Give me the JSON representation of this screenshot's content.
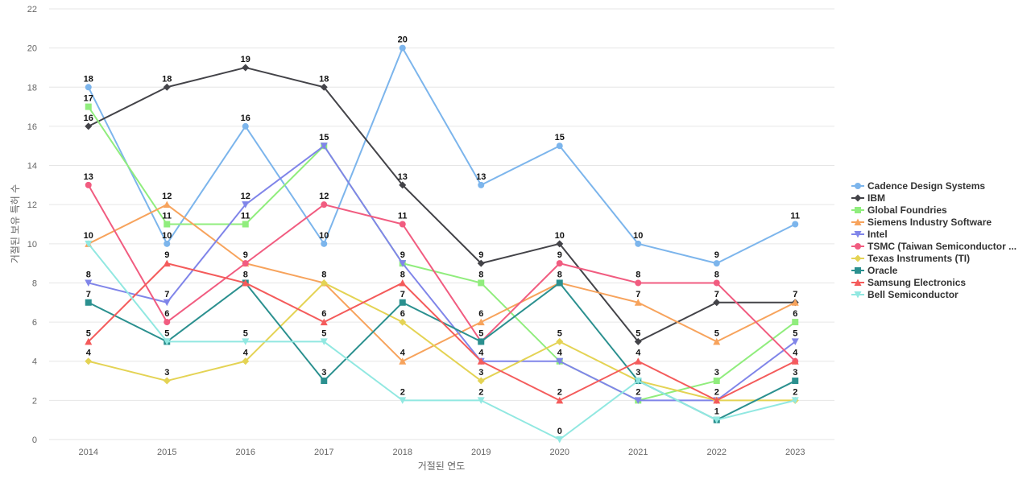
{
  "chart_data": {
    "type": "line",
    "xlabel": "거절된 연도",
    "ylabel": "거절된 보유 특허 수",
    "ylim": [
      0,
      22
    ],
    "yticks": [
      0,
      2,
      4,
      6,
      8,
      10,
      12,
      14,
      16,
      18,
      20,
      22
    ],
    "grid": true,
    "legend_position": "right",
    "categories": [
      "2014",
      "2015",
      "2016",
      "2017",
      "2018",
      "2019",
      "2020",
      "2021",
      "2022",
      "2023"
    ],
    "series": [
      {
        "name": "Cadence Design Systems",
        "color": "#7cb5ec",
        "marker": "circle",
        "values": [
          18,
          10,
          16,
          10,
          20,
          13,
          15,
          10,
          9,
          11
        ]
      },
      {
        "name": "IBM",
        "color": "#434348",
        "marker": "diamond",
        "values": [
          16,
          18,
          19,
          18,
          13,
          9,
          10,
          5,
          7,
          7
        ]
      },
      {
        "name": "Global Foundries",
        "color": "#90ed7d",
        "marker": "square",
        "values": [
          17,
          11,
          11,
          15,
          9,
          8,
          4,
          2,
          3,
          6
        ]
      },
      {
        "name": "Siemens Industry Software",
        "color": "#f7a35c",
        "marker": "triangle",
        "values": [
          10,
          12,
          9,
          8,
          4,
          6,
          8,
          7,
          5,
          7
        ]
      },
      {
        "name": "Intel",
        "color": "#8085e9",
        "marker": "triangle-down",
        "values": [
          8,
          7,
          12,
          15,
          9,
          4,
          4,
          2,
          2,
          5
        ]
      },
      {
        "name": "TSMC (Taiwan Semiconductor ...",
        "color": "#f15c80",
        "marker": "circle",
        "values": [
          13,
          6,
          9,
          12,
          11,
          5,
          9,
          8,
          8,
          4
        ]
      },
      {
        "name": "Texas Instruments (TI)",
        "color": "#e4d354",
        "marker": "diamond",
        "values": [
          4,
          3,
          4,
          8,
          6,
          3,
          5,
          3,
          2,
          2
        ]
      },
      {
        "name": "Oracle",
        "color": "#2b908f",
        "marker": "square",
        "values": [
          7,
          5,
          8,
          3,
          7,
          5,
          8,
          3,
          1,
          3
        ]
      },
      {
        "name": "Samsung Electronics",
        "color": "#f45b5b",
        "marker": "triangle",
        "values": [
          5,
          9,
          8,
          6,
          8,
          4,
          2,
          4,
          2,
          4
        ]
      },
      {
        "name": "Bell Semiconductor",
        "color": "#91e8e1",
        "marker": "triangle-down",
        "values": [
          10,
          5,
          5,
          5,
          2,
          2,
          0,
          3,
          1,
          2
        ]
      }
    ]
  }
}
